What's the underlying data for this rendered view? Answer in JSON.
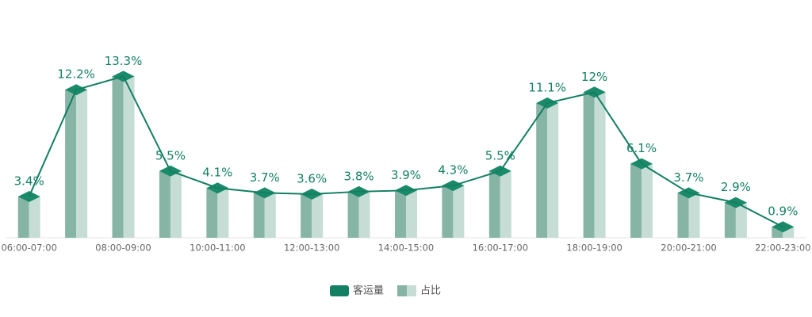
{
  "chart_data": {
    "type": "bar-line",
    "categories": [
      "06:00-07:00",
      null,
      "08:00-09:00",
      null,
      "10:00-11:00",
      null,
      "12:00-13:00",
      null,
      "14:00-15:00",
      null,
      "16:00-17:00",
      null,
      "18:00-19:00",
      null,
      "20:00-21:00",
      null,
      "22:00-23:00"
    ],
    "series": [
      {
        "name": "客运量",
        "type": "line",
        "color": "#137f63",
        "values": [
          3.4,
          12.2,
          13.3,
          5.5,
          4.1,
          3.7,
          3.6,
          3.8,
          3.9,
          4.3,
          5.5,
          11.1,
          12,
          6.1,
          3.7,
          2.9,
          0.9
        ],
        "value_labels": [
          "3.4%",
          "12.2%",
          "13.3%",
          "5.5%",
          "4.1%",
          "3.7%",
          "3.6%",
          "3.8%",
          "3.9%",
          "4.3%",
          "5.5%",
          "11.1%",
          "12%",
          "6.1%",
          "3.7%",
          "2.9%",
          "0.9%"
        ]
      },
      {
        "name": "占比",
        "type": "bar",
        "color": "#86b5a5",
        "side_color": "#c6ddd5",
        "top_color": "#1a8a6a",
        "values": [
          3.4,
          12.2,
          13.3,
          5.5,
          4.1,
          3.7,
          3.6,
          3.8,
          3.9,
          4.3,
          5.5,
          11.1,
          12,
          6.1,
          3.7,
          2.9,
          0.9
        ]
      }
    ],
    "ylim": [
      0,
      16
    ],
    "legend": "bottom"
  }
}
